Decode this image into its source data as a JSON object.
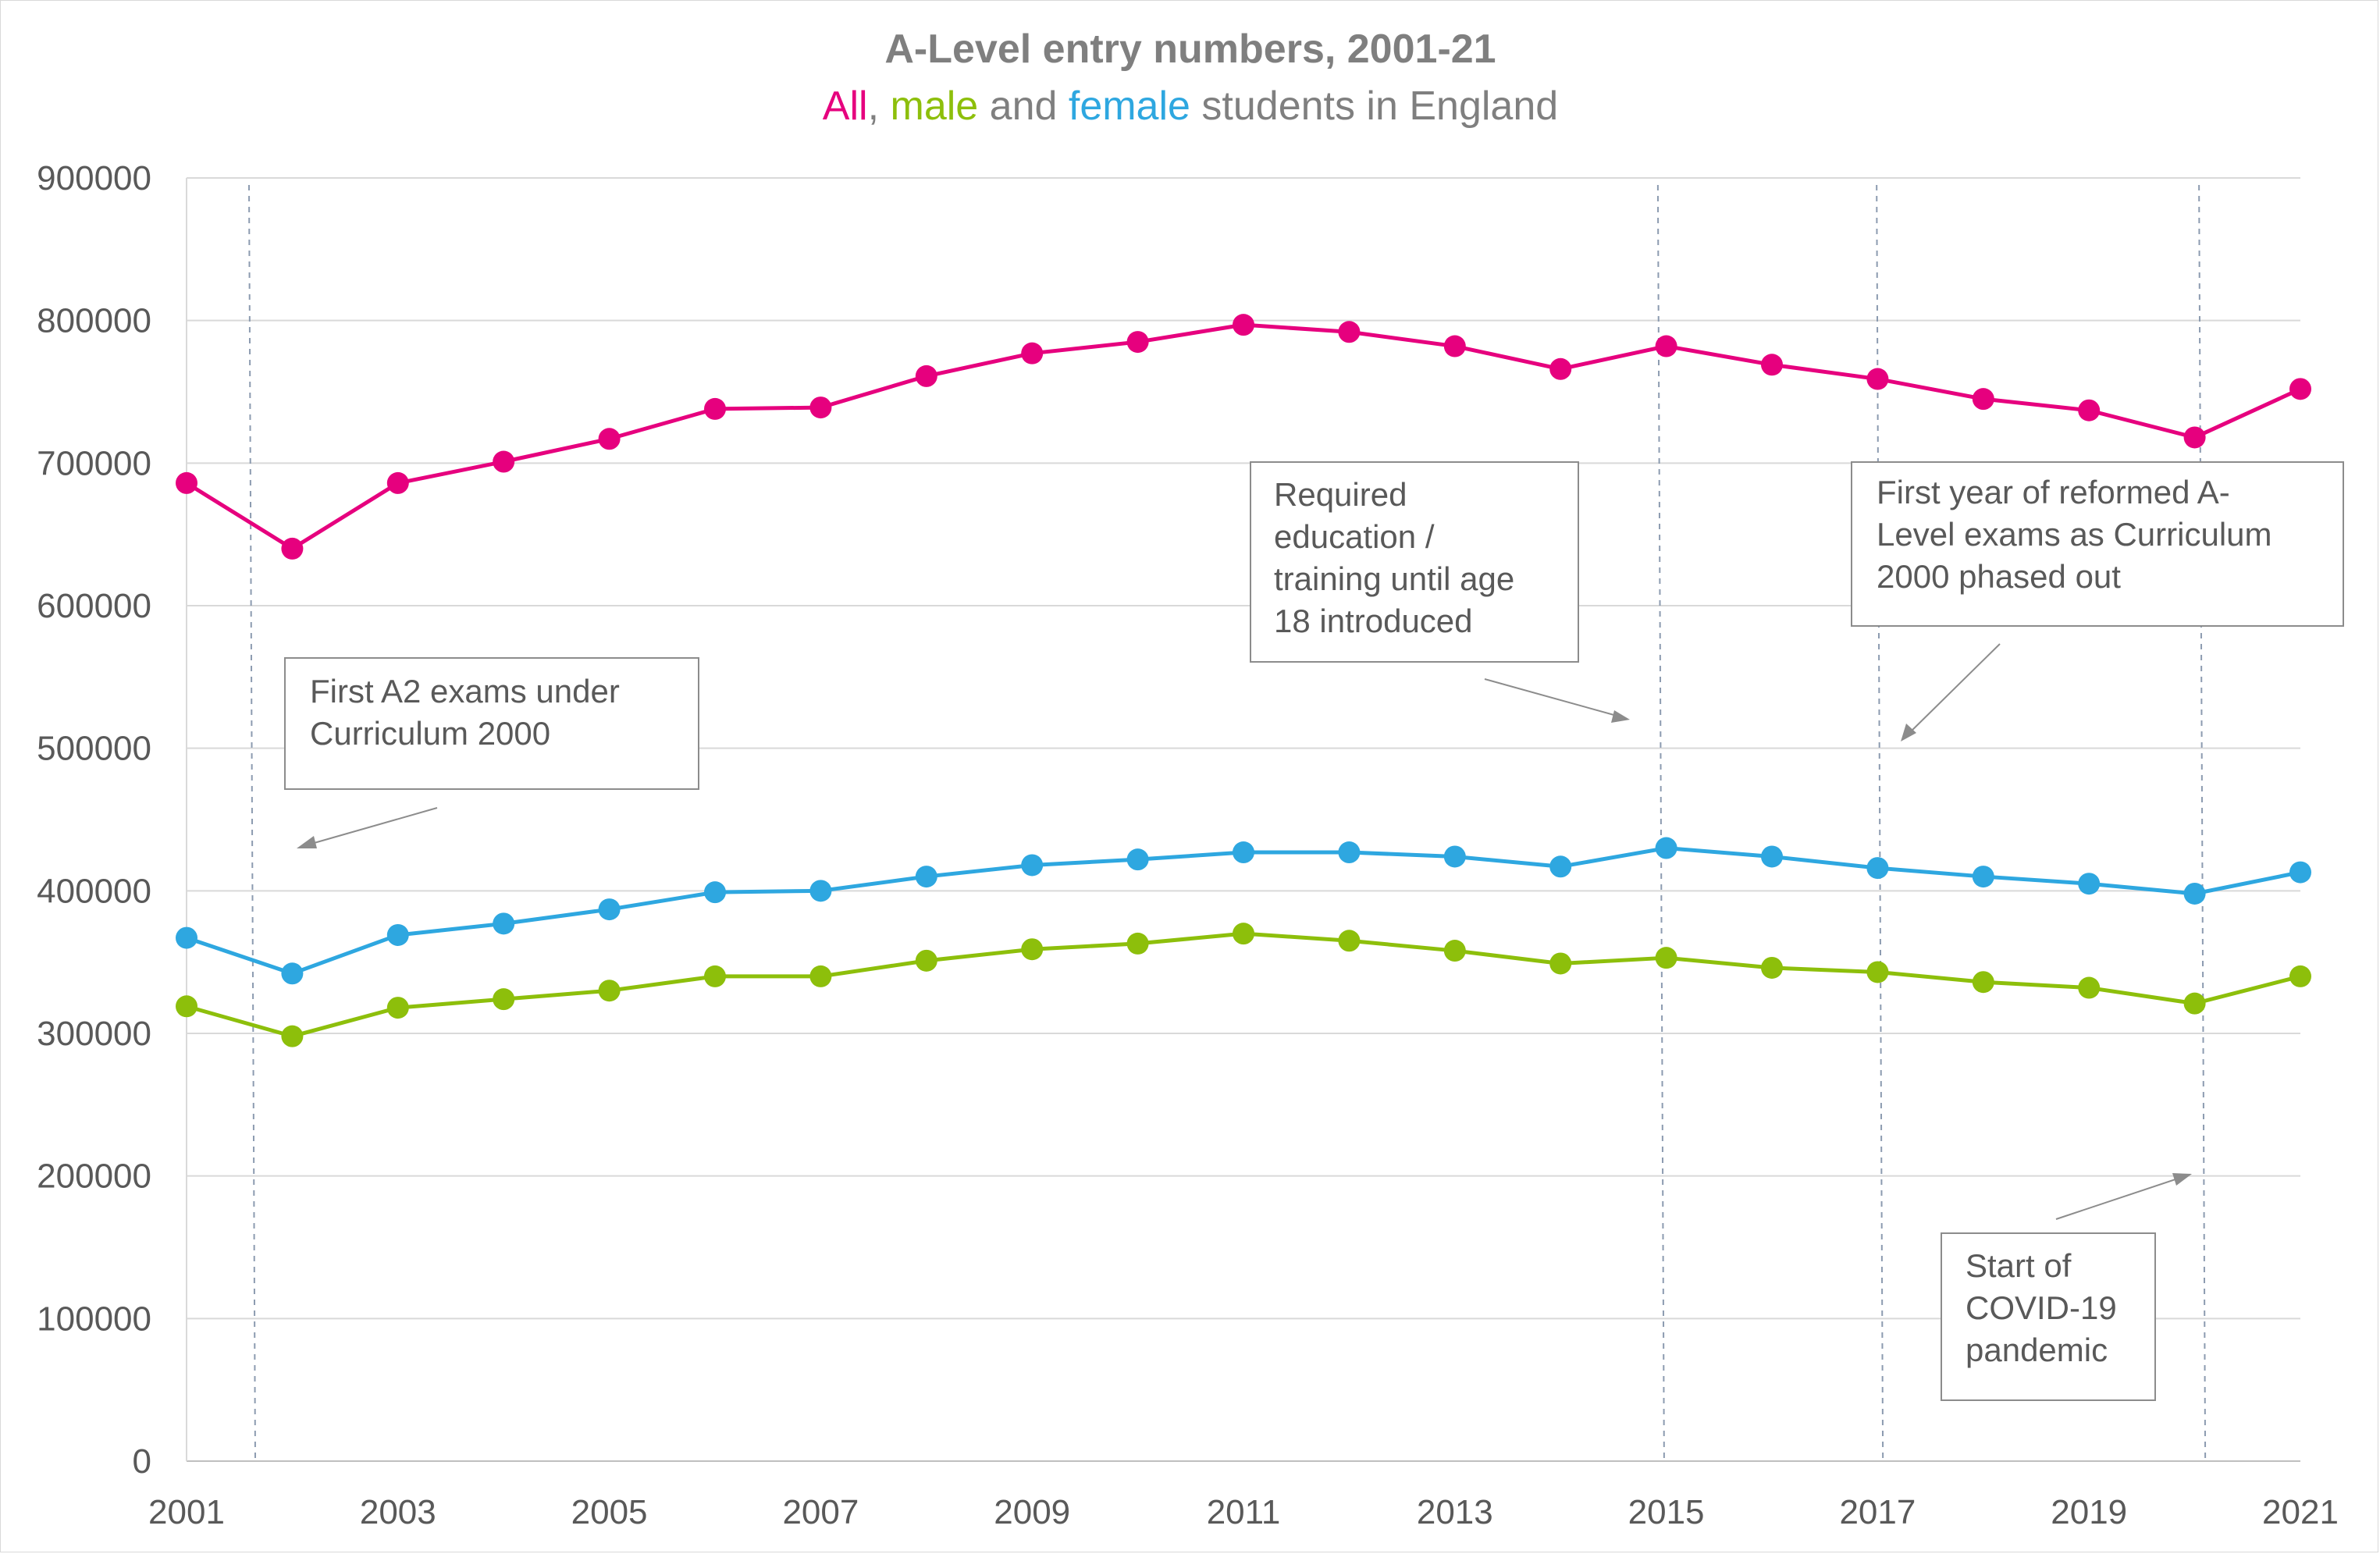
{
  "chart_data": {
    "type": "line",
    "title": "A-Level entry numbers, 2001-21",
    "subtitle_parts": [
      {
        "text": "All",
        "color": "#e6007e"
      },
      {
        "text": ", ",
        "color": "#7f7f7f"
      },
      {
        "text": "male",
        "color": "#8dbf0b"
      },
      {
        "text": " and ",
        "color": "#7f7f7f"
      },
      {
        "text": "female",
        "color": "#2ea7e0"
      },
      {
        "text": " students in England",
        "color": "#7f7f7f"
      }
    ],
    "x": [
      2001,
      2002,
      2003,
      2004,
      2005,
      2006,
      2007,
      2008,
      2009,
      2010,
      2011,
      2012,
      2013,
      2014,
      2015,
      2016,
      2017,
      2018,
      2019,
      2020,
      2021
    ],
    "x_tick_labels": [
      "2001",
      "2003",
      "2005",
      "2007",
      "2009",
      "2011",
      "2013",
      "2015",
      "2017",
      "2019",
      "2021"
    ],
    "ylim": [
      0,
      900000
    ],
    "y_tick_labels": [
      "0",
      "100000",
      "200000",
      "300000",
      "400000",
      "500000",
      "600000",
      "700000",
      "800000",
      "900000"
    ],
    "grid": "horizontal",
    "series": [
      {
        "color": "#e6007e",
        "values": [
          686000,
          640000,
          686000,
          701000,
          717000,
          738000,
          739000,
          761000,
          777000,
          785000,
          797000,
          792000,
          782000,
          766000,
          782000,
          769000,
          759000,
          745000,
          737000,
          718000,
          752000
        ]
      },
      {
        "color": "#2ea7e0",
        "values": [
          367000,
          342000,
          369000,
          377000,
          387000,
          399000,
          400000,
          410000,
          418000,
          422000,
          427000,
          427000,
          424000,
          417000,
          430000,
          424000,
          416000,
          410000,
          405000,
          398000,
          413000
        ]
      },
      {
        "color": "#8dbf0b",
        "values": [
          319000,
          298000,
          318000,
          324000,
          330000,
          340000,
          340000,
          351000,
          359000,
          363000,
          370000,
          365000,
          358000,
          349000,
          353000,
          346000,
          343000,
          336000,
          332000,
          321000,
          340000
        ]
      }
    ],
    "event_lines_x": [
      2001.65,
      2014.98,
      2017.05,
      2020.1
    ],
    "annotations": [
      {
        "lines": [
          "First A2 exams under",
          "Curriculum 2000"
        ]
      },
      {
        "lines": [
          "Required",
          "education /",
          "training until age",
          "18 introduced"
        ]
      },
      {
        "lines": [
          "First year of reformed A-",
          "Level exams as  Curriculum",
          "2000 phased out"
        ]
      },
      {
        "lines": [
          "Start of",
          "COVID-19",
          "pandemic"
        ]
      }
    ]
  }
}
